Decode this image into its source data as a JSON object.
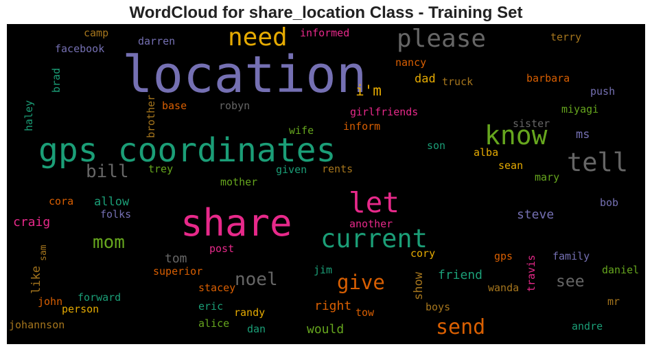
{
  "title": "WordCloud for share_location Class - Training Set",
  "words": [
    {
      "t": "location",
      "c": "#7570b3"
    },
    {
      "t": "need",
      "c": "#e6ab02"
    },
    {
      "t": "please",
      "c": "#666666"
    },
    {
      "t": "gps coordinates",
      "c": "#1b9e77"
    },
    {
      "t": "know",
      "c": "#66a61e"
    },
    {
      "t": "tell",
      "c": "#666666"
    },
    {
      "t": "share",
      "c": "#e7298a"
    },
    {
      "t": "let",
      "c": "#e7298a"
    },
    {
      "t": "current",
      "c": "#1b9e77"
    },
    {
      "t": "i'm",
      "c": "#e6ab02"
    },
    {
      "t": "send",
      "c": "#d95f02"
    },
    {
      "t": "give",
      "c": "#d95f02"
    },
    {
      "t": "mom",
      "c": "#66a61e"
    },
    {
      "t": "bill",
      "c": "#666666"
    },
    {
      "t": "noel",
      "c": "#666666"
    },
    {
      "t": "see",
      "c": "#666666"
    },
    {
      "t": "camp",
      "c": "#a6761d"
    },
    {
      "t": "informed",
      "c": "#e7298a"
    },
    {
      "t": "terry",
      "c": "#a6761d"
    },
    {
      "t": "facebook",
      "c": "#7570b3"
    },
    {
      "t": "darren",
      "c": "#7570b3"
    },
    {
      "t": "brad",
      "c": "#1b9e77"
    },
    {
      "t": "nancy",
      "c": "#d95f02"
    },
    {
      "t": "dad",
      "c": "#e6ab02"
    },
    {
      "t": "truck",
      "c": "#a6761d"
    },
    {
      "t": "barbara",
      "c": "#d95f02"
    },
    {
      "t": "push",
      "c": "#7570b3"
    },
    {
      "t": "haley",
      "c": "#1b9e77"
    },
    {
      "t": "brother",
      "c": "#a6761d"
    },
    {
      "t": "base",
      "c": "#d95f02"
    },
    {
      "t": "robyn",
      "c": "#666666"
    },
    {
      "t": "girlfriends",
      "c": "#e7298a"
    },
    {
      "t": "miyagi",
      "c": "#66a61e"
    },
    {
      "t": "sister",
      "c": "#666666"
    },
    {
      "t": "inform",
      "c": "#d95f02"
    },
    {
      "t": "wife",
      "c": "#66a61e"
    },
    {
      "t": "ms",
      "c": "#7570b3"
    },
    {
      "t": "son",
      "c": "#1b9e77"
    },
    {
      "t": "alba",
      "c": "#e6ab02"
    },
    {
      "t": "trey",
      "c": "#66a61e"
    },
    {
      "t": "given",
      "c": "#1b9e77"
    },
    {
      "t": "rents",
      "c": "#a6761d"
    },
    {
      "t": "sean",
      "c": "#e6ab02"
    },
    {
      "t": "mary",
      "c": "#66a61e"
    },
    {
      "t": "mother",
      "c": "#66a61e"
    },
    {
      "t": "cora",
      "c": "#d95f02"
    },
    {
      "t": "allow",
      "c": "#1b9e77"
    },
    {
      "t": "bob",
      "c": "#7570b3"
    },
    {
      "t": "folks",
      "c": "#7570b3"
    },
    {
      "t": "craig",
      "c": "#e7298a"
    },
    {
      "t": "steve",
      "c": "#7570b3"
    },
    {
      "t": "another",
      "c": "#e7298a"
    },
    {
      "t": "sam",
      "c": "#a6761d"
    },
    {
      "t": "tom",
      "c": "#666666"
    },
    {
      "t": "post",
      "c": "#e7298a"
    },
    {
      "t": "cory",
      "c": "#e6ab02"
    },
    {
      "t": "gps",
      "c": "#d95f02"
    },
    {
      "t": "family",
      "c": "#7570b3"
    },
    {
      "t": "like",
      "c": "#a6761d"
    },
    {
      "t": "superior",
      "c": "#d95f02"
    },
    {
      "t": "jim",
      "c": "#1b9e77"
    },
    {
      "t": "show",
      "c": "#a6761d"
    },
    {
      "t": "friend",
      "c": "#1b9e77"
    },
    {
      "t": "travis",
      "c": "#e7298a"
    },
    {
      "t": "daniel",
      "c": "#66a61e"
    },
    {
      "t": "wanda",
      "c": "#a6761d"
    },
    {
      "t": "stacey",
      "c": "#d95f02"
    },
    {
      "t": "john",
      "c": "#d95f02"
    },
    {
      "t": "forward",
      "c": "#1b9e77"
    },
    {
      "t": "mr",
      "c": "#a6761d"
    },
    {
      "t": "right",
      "c": "#d95f02"
    },
    {
      "t": "eric",
      "c": "#1b9e77"
    },
    {
      "t": "person",
      "c": "#e6ab02"
    },
    {
      "t": "boys",
      "c": "#a6761d"
    },
    {
      "t": "randy",
      "c": "#e6ab02"
    },
    {
      "t": "tow",
      "c": "#d95f02"
    },
    {
      "t": "johannson",
      "c": "#a6761d"
    },
    {
      "t": "alice",
      "c": "#66a61e"
    },
    {
      "t": "dan",
      "c": "#1b9e77"
    },
    {
      "t": "would",
      "c": "#66a61e"
    },
    {
      "t": "andre",
      "c": "#1b9e77"
    }
  ]
}
